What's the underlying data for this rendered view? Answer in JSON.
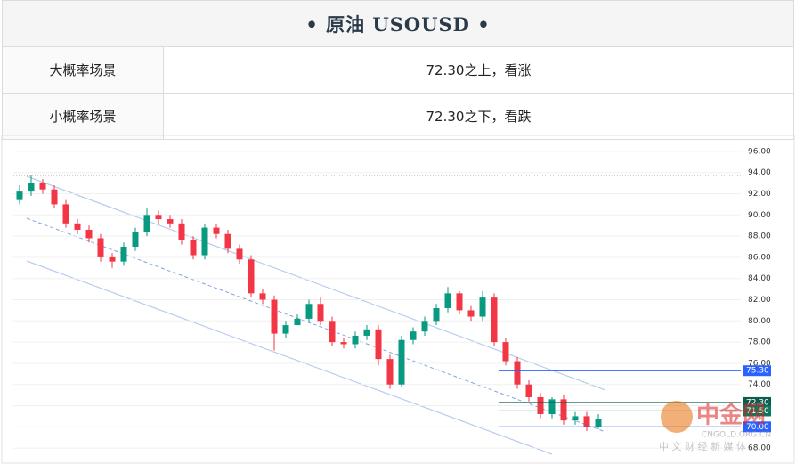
{
  "header": {
    "title": "• 原油  USOUSD •"
  },
  "table": {
    "rows": [
      [
        "大概率场景",
        "72.30之上，看涨"
      ],
      [
        "小概率场景",
        "72.30之下，看跌"
      ]
    ]
  },
  "chart_data": {
    "type": "candlestick",
    "open": [
      91.4,
      92.2,
      93.0,
      92.4,
      91.0,
      89.2,
      88.6,
      87.8,
      86.0,
      85.6,
      87.0,
      88.4,
      90.0,
      89.6,
      89.2,
      87.6,
      86.2,
      88.8,
      88.2,
      86.8,
      85.8,
      82.6,
      82.0,
      78.8,
      79.6,
      80.2,
      81.6,
      80.0,
      78.0,
      77.8,
      78.6,
      79.2,
      76.4,
      74.0,
      78.2,
      79.0,
      80.0,
      81.2,
      82.6,
      81.0,
      80.4,
      82.2,
      78.0,
      76.2,
      74.0,
      72.8,
      71.2,
      72.6,
      70.6,
      71.0,
      70.0
    ],
    "high": [
      92.8,
      93.8,
      93.4,
      92.8,
      91.4,
      89.6,
      89.0,
      88.2,
      86.4,
      87.4,
      88.8,
      90.6,
      90.4,
      90.0,
      89.6,
      88.0,
      89.2,
      89.2,
      88.6,
      87.2,
      86.2,
      83.0,
      82.4,
      80.0,
      80.6,
      82.0,
      82.2,
      80.4,
      78.4,
      79.0,
      79.6,
      79.6,
      76.8,
      78.6,
      79.4,
      80.4,
      81.6,
      83.2,
      82.8,
      81.4,
      82.8,
      82.6,
      78.4,
      76.6,
      74.4,
      73.2,
      72.8,
      73.0,
      71.4,
      71.4,
      71.2
    ],
    "low": [
      91.0,
      91.8,
      92.0,
      90.6,
      88.8,
      88.2,
      87.4,
      85.6,
      85.0,
      85.2,
      86.6,
      88.0,
      89.2,
      88.8,
      87.2,
      85.8,
      85.8,
      87.8,
      86.4,
      85.4,
      82.2,
      81.6,
      77.2,
      78.4,
      79.8,
      79.8,
      79.6,
      77.6,
      77.4,
      77.4,
      78.2,
      75.8,
      73.6,
      73.8,
      77.8,
      78.6,
      79.6,
      80.8,
      80.6,
      80.0,
      80.0,
      77.6,
      75.8,
      73.6,
      72.4,
      70.8,
      70.8,
      70.2,
      70.2,
      69.6,
      69.8
    ],
    "close": [
      92.2,
      93.0,
      92.4,
      91.0,
      89.2,
      88.6,
      87.8,
      86.0,
      85.6,
      87.0,
      88.4,
      90.0,
      89.6,
      89.2,
      87.6,
      86.2,
      88.8,
      88.2,
      86.8,
      85.8,
      82.6,
      82.0,
      78.8,
      79.6,
      80.2,
      81.6,
      80.0,
      78.0,
      77.8,
      78.6,
      79.2,
      76.4,
      74.0,
      78.2,
      79.0,
      80.0,
      81.2,
      82.6,
      81.0,
      80.4,
      82.2,
      78.0,
      76.2,
      74.0,
      72.8,
      71.2,
      72.6,
      70.6,
      71.0,
      70.0,
      70.7
    ],
    "up_color": "#089981",
    "down_color": "#f23645",
    "ylim": [
      67,
      97
    ],
    "yticks": [
      {
        "value": 68,
        "label": "68.00"
      },
      {
        "value": 70,
        "label": "70.00"
      },
      {
        "value": 72,
        "label": "72.00"
      },
      {
        "value": 74,
        "label": "74.00"
      },
      {
        "value": 76,
        "label": "76.00"
      },
      {
        "value": 78,
        "label": "78.00"
      },
      {
        "value": 80,
        "label": "80.00"
      },
      {
        "value": 82,
        "label": "82.00"
      },
      {
        "value": 84,
        "label": "84.00"
      },
      {
        "value": 86,
        "label": "86.00"
      },
      {
        "value": 88,
        "label": "88.00"
      },
      {
        "value": 90,
        "label": "90.00"
      },
      {
        "value": 92,
        "label": "92.00"
      },
      {
        "value": 94,
        "label": "94.00"
      },
      {
        "value": 96,
        "label": "96.00"
      }
    ],
    "levels": [
      {
        "value": 75.3,
        "label": "75.30",
        "color": "#2962ff"
      },
      {
        "value": 72.3,
        "label": "72.30",
        "color": "#0b5e4c"
      },
      {
        "value": 71.5,
        "label": "71.50",
        "color": "#0b7a5c"
      },
      {
        "value": 70,
        "label": "70.00",
        "color": "#2962ff"
      }
    ],
    "watermark": {
      "brand": "中金网",
      "site": "CNGOLD.ORG.CN",
      "slogan": "中 文 财 经 新 媒 体"
    }
  }
}
